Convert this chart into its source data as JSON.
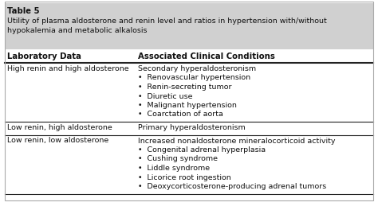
{
  "title_line1": "Table 5",
  "title_line2": "Utility of plasma aldosterone and renin level and ratios in hypertension with/without",
  "title_line3": "hypokalemia and metabolic alkalosis",
  "header_col1": "Laboratory Data",
  "header_col2": "Associated Clinical Conditions",
  "rows": [
    {
      "col1": "High renin and high aldosterone",
      "col2_lines": [
        "Secondary hyperaldosteronism",
        "•  Renovascular hypertension",
        "•  Renin-secreting tumor",
        "•  Diuretic use",
        "•  Malignant hypertension",
        "•  Coarctation of aorta"
      ]
    },
    {
      "col1": "Low renin, high aldosterone",
      "col2_lines": [
        "Primary hyperaldosteronism"
      ]
    },
    {
      "col1": "Low renin, low aldosterone",
      "col2_lines": [
        "Increased nonaldosterone mineralocorticoid activity",
        "•  Congenital adrenal hyperplasia",
        "•  Cushing syndrome",
        "•  Liddle syndrome",
        "•  Licorice root ingestion",
        "•  Deoxycorticosterone-producing adrenal tumors"
      ]
    }
  ],
  "bg_color": "#ffffff",
  "title_bg": "#d0d0d0",
  "body_bg": "#ffffff",
  "line_color": "#222222",
  "text_color": "#111111",
  "font_size": 6.8,
  "title_font_size": 7.2,
  "col_split": 0.365,
  "outer_border_color": "#aaaaaa"
}
